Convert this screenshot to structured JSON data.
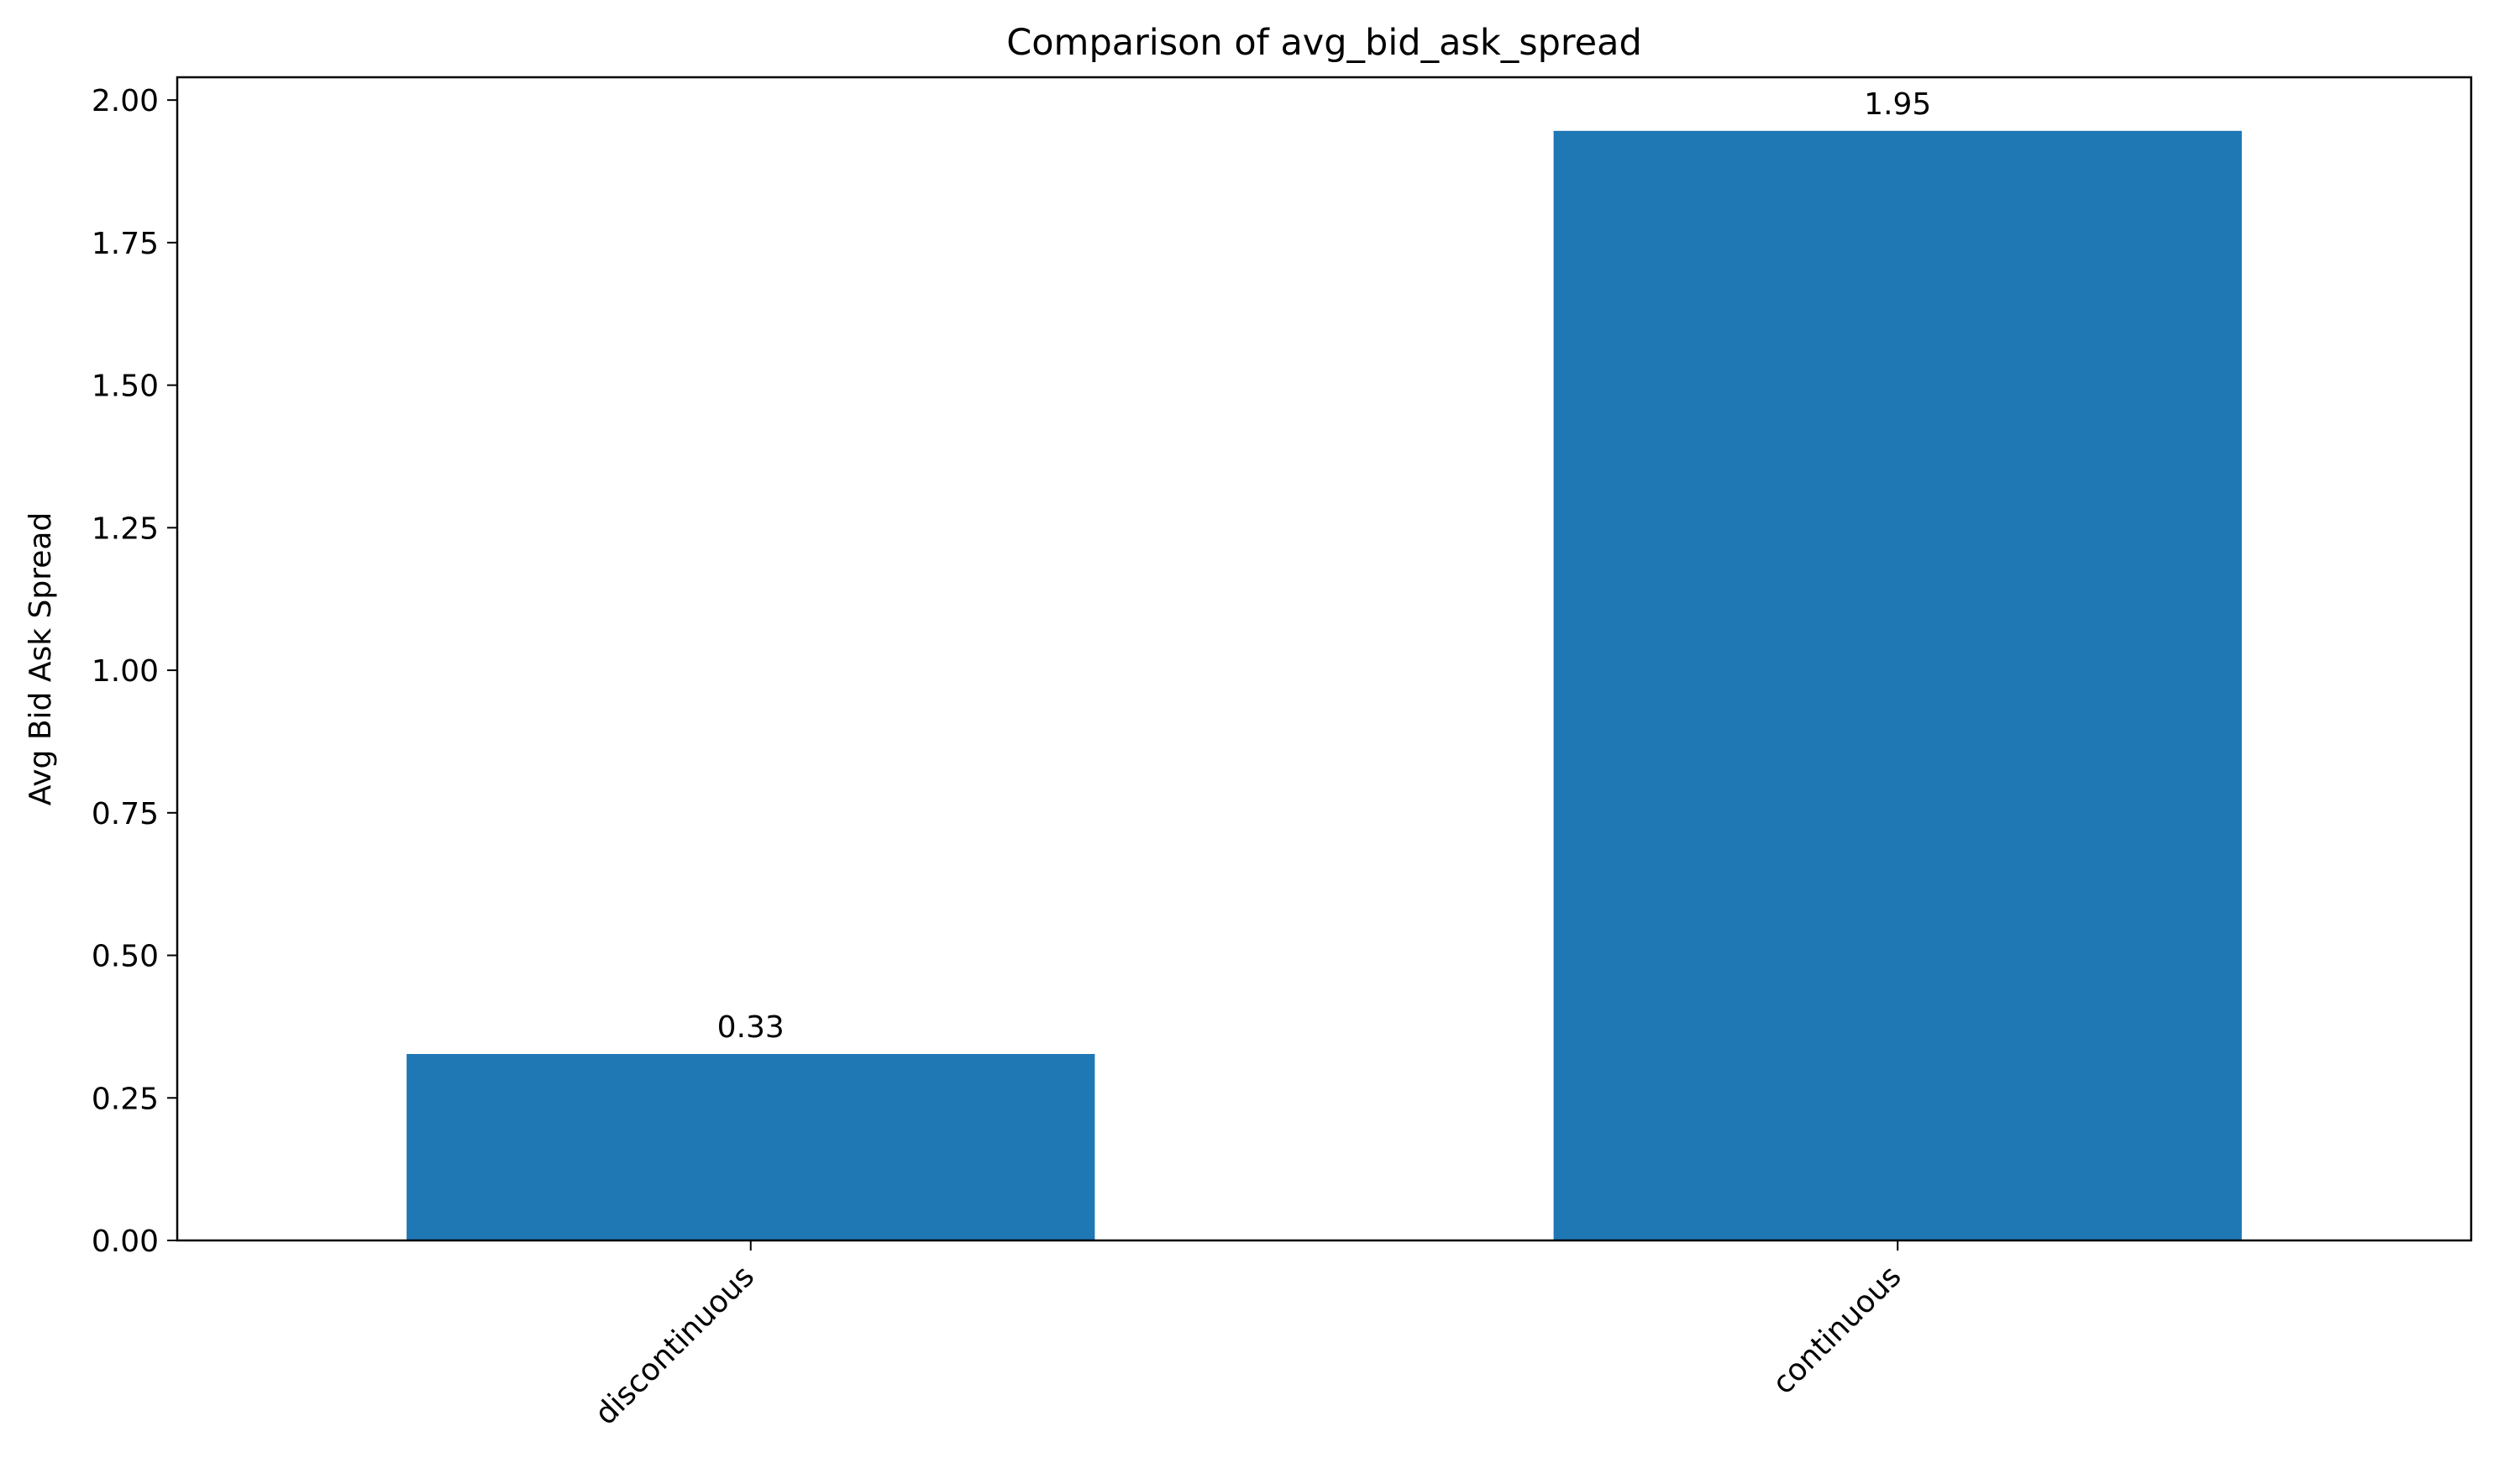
{
  "chart_data": {
    "type": "bar",
    "title": "Comparison of avg_bid_ask_spread",
    "xlabel": "",
    "ylabel": "Avg Bid Ask Spread",
    "categories": [
      "discontinuous",
      "continuous"
    ],
    "values": [
      0.327,
      1.946
    ],
    "data_labels": [
      "0.33",
      "1.95"
    ],
    "ylim": [
      0,
      2.04
    ],
    "yticks": [
      0.0,
      0.25,
      0.5,
      0.75,
      1.0,
      1.25,
      1.5,
      1.75,
      2.0
    ],
    "ytick_labels": [
      "0.00",
      "0.25",
      "0.50",
      "0.75",
      "1.00",
      "1.25",
      "1.50",
      "1.75",
      "2.00"
    ],
    "bar_color": "#1f77b4",
    "grid": false,
    "legend": "none",
    "xtick_rotation": "45 degrees, right-aligned"
  }
}
